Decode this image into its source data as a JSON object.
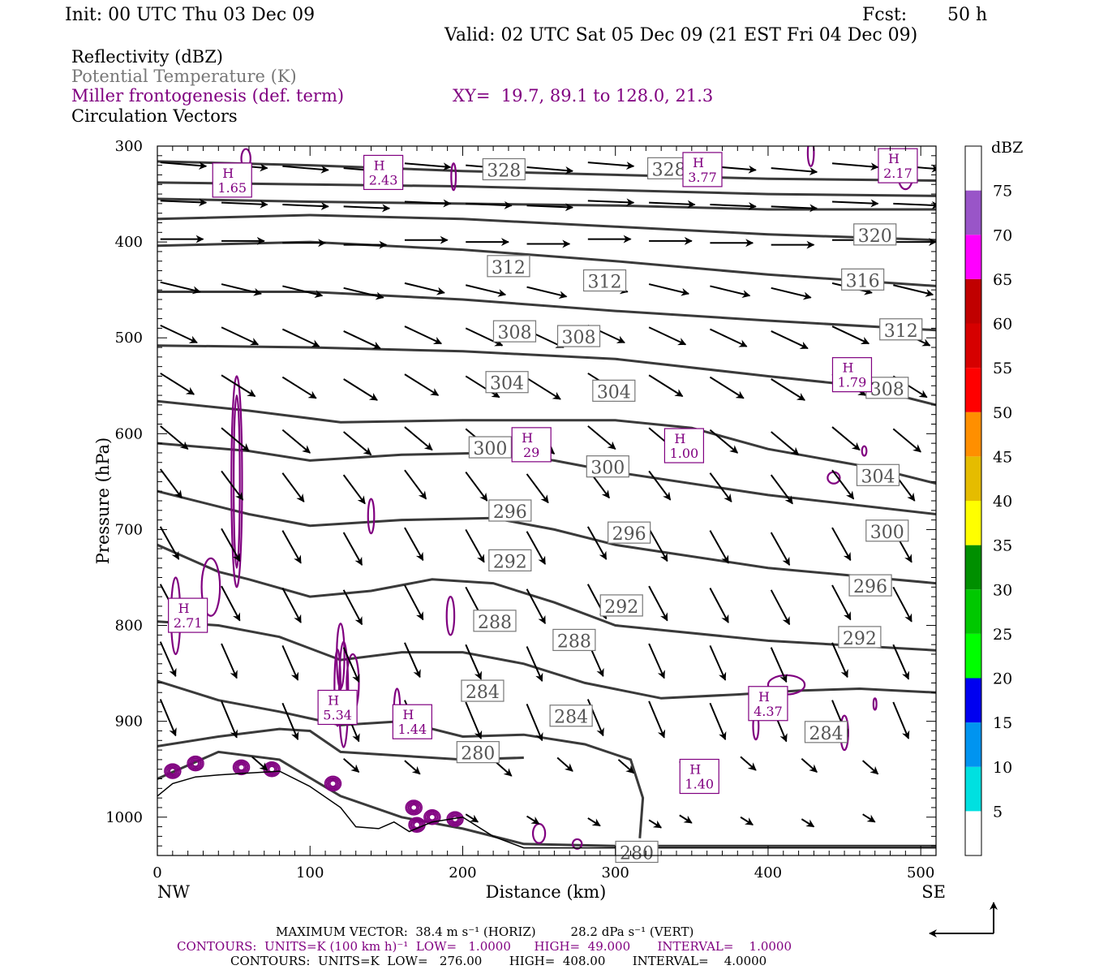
{
  "header": {
    "init": "Init: 00 UTC Thu 03 Dec 09",
    "fcst_label": "Fcst:",
    "fcst_value": "50 h",
    "valid": "Valid: 02 UTC Sat 05 Dec 09 (21 EST Fri 04 Dec 09)"
  },
  "legend_lines": {
    "reflectivity": "Reflectivity (dBZ)",
    "theta": "Potential Temperature (K)",
    "miller": "Miller frontogenesis (def. term)",
    "xy": "XY=  19.7, 89.1 to 128.0, 21.3",
    "vectors": "Circulation Vectors"
  },
  "colors": {
    "theta_contour": "#3a3a3a",
    "frontogenesis": "#800080",
    "theta_label": "#777777",
    "vector": "#000000"
  },
  "chart_data": {
    "type": "cross-section",
    "xlabel": "Distance (km)",
    "ylabel": "Pressure (hPa)",
    "xlim": [
      0,
      510
    ],
    "ylim": [
      1040,
      300
    ],
    "x_ticks": [
      "0",
      "100",
      "200",
      "300",
      "400",
      "500"
    ],
    "y_ticks": [
      "300",
      "400",
      "500",
      "600",
      "700",
      "800",
      "900",
      "1000"
    ],
    "left_end": "NW",
    "right_end": "SE",
    "colorbar": {
      "unit": "dBZ",
      "levels": [
        "5",
        "10",
        "15",
        "20",
        "25",
        "30",
        "35",
        "40",
        "45",
        "50",
        "55",
        "60",
        "65",
        "70",
        "75"
      ],
      "colors": [
        "#ffffff",
        "#00e0e0",
        "#0094f0",
        "#0000f0",
        "#00ff00",
        "#00c800",
        "#008f00",
        "#ffff00",
        "#e5bc00",
        "#ff8f00",
        "#ff0000",
        "#d60000",
        "#c00000",
        "#ff00ff",
        "#9955c8",
        "#ffffff"
      ]
    },
    "theta_labels": [
      {
        "text": "328",
        "x": 227,
        "p": 325
      },
      {
        "text": "328",
        "x": 335,
        "p": 324
      },
      {
        "text": "320",
        "x": 470,
        "p": 393
      },
      {
        "text": "312",
        "x": 230,
        "p": 426
      },
      {
        "text": "312",
        "x": 293,
        "p": 441
      },
      {
        "text": "316",
        "x": 462,
        "p": 440
      },
      {
        "text": "312",
        "x": 487,
        "p": 492
      },
      {
        "text": "308",
        "x": 234,
        "p": 494
      },
      {
        "text": "308",
        "x": 276,
        "p": 499
      },
      {
        "text": "308",
        "x": 478,
        "p": 553
      },
      {
        "text": "304",
        "x": 229,
        "p": 547
      },
      {
        "text": "304",
        "x": 299,
        "p": 556
      },
      {
        "text": "300",
        "x": 218,
        "p": 615
      },
      {
        "text": "300",
        "x": 295,
        "p": 635
      },
      {
        "text": "304",
        "x": 472,
        "p": 644
      },
      {
        "text": "296",
        "x": 231,
        "p": 681
      },
      {
        "text": "296",
        "x": 309,
        "p": 704
      },
      {
        "text": "300",
        "x": 478,
        "p": 702
      },
      {
        "text": "292",
        "x": 231,
        "p": 733
      },
      {
        "text": "292",
        "x": 304,
        "p": 780
      },
      {
        "text": "296",
        "x": 467,
        "p": 759
      },
      {
        "text": "288",
        "x": 221,
        "p": 796
      },
      {
        "text": "288",
        "x": 273,
        "p": 816
      },
      {
        "text": "292",
        "x": 460,
        "p": 813
      },
      {
        "text": "284",
        "x": 213,
        "p": 869
      },
      {
        "text": "284",
        "x": 271,
        "p": 895
      },
      {
        "text": "284",
        "x": 438,
        "p": 912
      },
      {
        "text": "280",
        "x": 210,
        "p": 933
      },
      {
        "text": "280",
        "x": 314,
        "p": 1037
      }
    ],
    "frontogenesis_maxima": [
      {
        "label": "H",
        "value": "1.65",
        "x": 49,
        "p": 338
      },
      {
        "label": "H",
        "value": "2.43",
        "x": 148,
        "p": 330
      },
      {
        "label": "H",
        "value": "3.77",
        "x": 357,
        "p": 327
      },
      {
        "label": "H",
        "value": "2.17",
        "x": 485,
        "p": 323
      },
      {
        "label": "H",
        "value": "1.79",
        "x": 455,
        "p": 541
      },
      {
        "label": "H",
        "value": "29",
        "x": 245,
        "p": 614
      },
      {
        "label": "H",
        "value": "1.00",
        "x": 345,
        "p": 615
      },
      {
        "label": "H",
        "value": "2.71",
        "x": 20,
        "p": 792
      },
      {
        "label": "H",
        "value": "5.34",
        "x": 118,
        "p": 888
      },
      {
        "label": "H",
        "value": "1.44",
        "x": 167,
        "p": 903
      },
      {
        "label": "H",
        "value": "1.40",
        "x": 355,
        "p": 960
      },
      {
        "label": "H",
        "value": "4.37",
        "x": 400,
        "p": 884
      }
    ],
    "theta_values_K": [
      280,
      284,
      288,
      292,
      296,
      300,
      304,
      308,
      312,
      316,
      320,
      324,
      328
    ]
  },
  "footer": {
    "maximum_vector": "MAXIMUM VECTOR:  38.4 m s⁻¹ (HORIZ)         28.2 dPa s⁻¹ (VERT)",
    "contours_frontogenesis": "CONTOURS:  UNITS=K (100 km h)⁻¹  LOW=   1.0000      HIGH=  49.000       INTERVAL=    1.0000",
    "contours_theta": "CONTOURS:  UNITS=K  LOW=   276.00       HIGH=  408.00       INTERVAL=    4.0000"
  }
}
